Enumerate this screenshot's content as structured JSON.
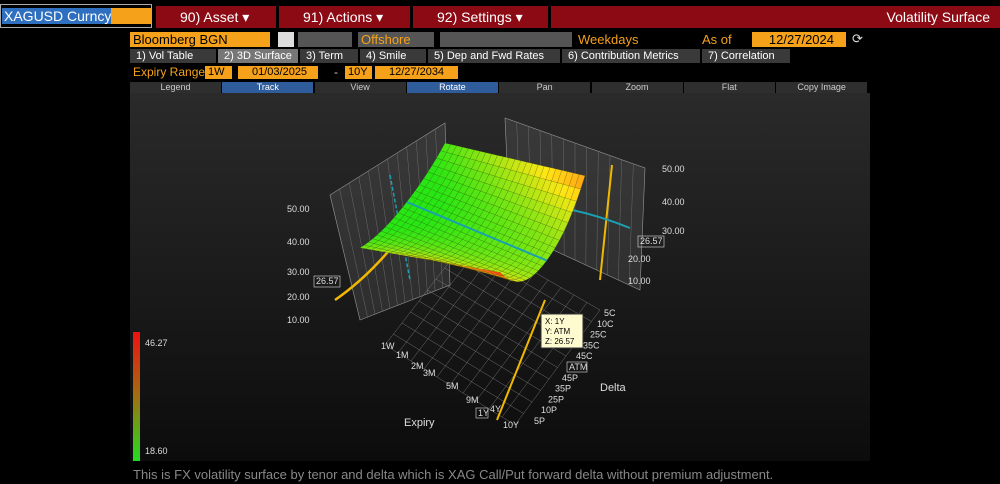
{
  "header": {
    "ticker": "XAGUSD Curncy",
    "menus": [
      "90) Asset ▾",
      "91) Actions ▾",
      "92) Settings ▾"
    ],
    "title": "Volatility Surface"
  },
  "controls": {
    "source": "Bloomberg BGN",
    "market": "Offshore",
    "days": "Weekdays",
    "as_of_label": "As of",
    "as_of": "12/27/2024"
  },
  "tabs": [
    "1) Vol Table",
    "2) 3D Surface",
    "3) Term",
    "4) Smile",
    "5) Dep and Fwd Rates",
    "6) Contribution Metrics",
    "7) Correlation"
  ],
  "expiry_range": {
    "label": "Expiry Range",
    "from_tenor": "1W",
    "from_date": "01/03/2025",
    "dash": "-",
    "to_tenor": "10Y",
    "to_date": "12/27/2034"
  },
  "toolbar": [
    "Legend",
    "Track",
    "View",
    "Rotate",
    "Pan",
    "Zoom",
    "Flat",
    "Copy Image"
  ],
  "surface": {
    "left_axis": [
      "50.00",
      "40.00",
      "30.00",
      "26.57",
      "20.00",
      "10.00"
    ],
    "right_axis": [
      "50.00",
      "40.00",
      "30.00",
      "26.57",
      "20.00",
      "10.00"
    ],
    "expiry_ticks": [
      "1W",
      "1M",
      "2M",
      "3M",
      "5M",
      "9M",
      "1Y",
      "4Y",
      "10Y"
    ],
    "delta_ticks": [
      "5C",
      "10C",
      "25C",
      "35C",
      "45C",
      "ATM",
      "45P",
      "35P",
      "25P",
      "10P",
      "5P"
    ],
    "expiry_title": "Expiry",
    "delta_title": "Delta",
    "tooltip": [
      "X: 1Y",
      "Y: ATM",
      "Z: 26.57"
    ],
    "legend_max": "46.27",
    "legend_min": "18.60"
  },
  "footer": "This is FX volatility surface by tenor and delta which is XAG Call/Put forward delta without premium adjustment."
}
